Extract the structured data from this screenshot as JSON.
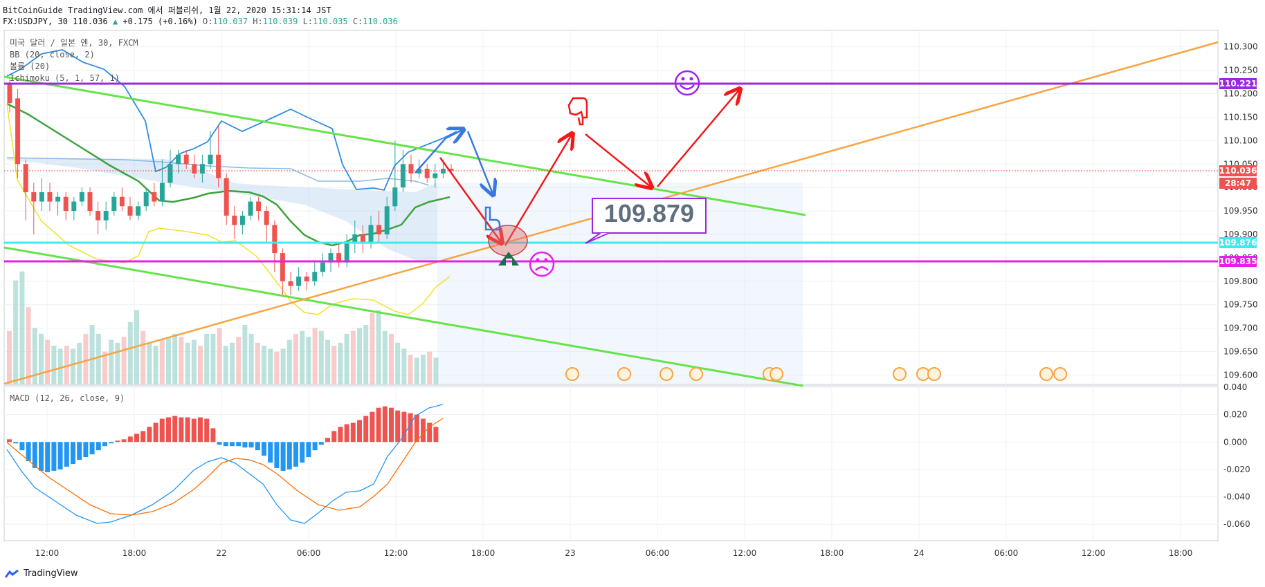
{
  "header": {
    "line1": "BitCoinGuide TradingView.com 에서 퍼블리쉬, 1월 22, 2020 15:31:14 JST",
    "symbol": "FX:USDJPY, 30 110.036",
    "change": "+0.175 (+0.16%)",
    "o_label": "O:",
    "o": "110.037",
    "h_label": "H:",
    "h": "110.039",
    "l_label": "L:",
    "l": "110.035",
    "c_label": "C:",
    "c": "110.036"
  },
  "indicators": {
    "title": "미국 달러 / 일본 엔, 30, FXCM",
    "bb": "BB (20, close, 2)",
    "volume": "볼륨 (20)",
    "ichimoku": "Ichimoku (5, 1, 57, 1)",
    "macd": "MACD (12, 26, close, 9)"
  },
  "annotation": {
    "price_box": "109.879"
  },
  "footer": {
    "brand": "TradingView"
  },
  "colors": {
    "up": "#26a69a",
    "down": "#ef5350",
    "channel": "#66e34a",
    "trend": "#f7a440",
    "resistance": "#9c27e0",
    "support": "#e91ee6",
    "cyan_level": "#40e8f0",
    "arrow_red": "#f21818",
    "arrow_blue": "#3a78e0",
    "macd_line": "#2196f3",
    "signal_line": "#ff6d00"
  },
  "chart_data": {
    "type": "candlestick",
    "symbol": "USDJPY",
    "timeframe": "30",
    "y_axis": {
      "ticks": [
        "110.300",
        "110.250",
        "110.200",
        "110.150",
        "110.100",
        "110.050",
        "110.000",
        "109.950",
        "109.900",
        "109.850",
        "109.800",
        "109.750",
        "109.700",
        "109.650",
        "109.600"
      ],
      "range": [
        109.58,
        110.335
      ]
    },
    "x_axis": {
      "ticks": [
        "12:00",
        "18:00",
        "22",
        "06:00",
        "12:00",
        "18:00",
        "23",
        "06:00",
        "12:00",
        "18:00",
        "24",
        "06:00",
        "12:00",
        "18:00"
      ]
    },
    "price_labels": [
      {
        "value": "110.221",
        "color": "#9c27e0"
      },
      {
        "value": "110.036",
        "color": "#ef5350"
      },
      {
        "value": "28:47",
        "color": "#ef5350"
      },
      {
        "value": "109.876",
        "color": "#40e8f0"
      },
      {
        "value": "109.835",
        "color": "#e91ee6"
      }
    ],
    "horizontal_levels": [
      110.221,
      109.876,
      109.835
    ],
    "last_price": 110.036,
    "macd_axis": {
      "ticks": [
        "0.040",
        "0.020",
        "0.000",
        "-0.020",
        "-0.040",
        "-0.060"
      ],
      "range": [
        -0.072,
        0.04
      ]
    },
    "macd_histogram": [
      0.002,
      -0.001,
      -0.006,
      -0.014,
      -0.019,
      -0.021,
      -0.022,
      -0.021,
      -0.02,
      -0.018,
      -0.016,
      -0.013,
      -0.011,
      -0.009,
      -0.006,
      -0.003,
      -0.001,
      0.001,
      0.002,
      0.004,
      0.006,
      0.008,
      0.011,
      0.014,
      0.017,
      0.018,
      0.019,
      0.018,
      0.018,
      0.017,
      0.018,
      0.017,
      0.01,
      -0.002,
      -0.003,
      -0.003,
      -0.003,
      -0.004,
      -0.004,
      -0.006,
      -0.01,
      -0.015,
      -0.019,
      -0.021,
      -0.02,
      -0.018,
      -0.015,
      -0.011,
      -0.006,
      -0.002,
      0.003,
      0.008,
      0.011,
      0.013,
      0.014,
      0.016,
      0.019,
      0.022,
      0.025,
      0.026,
      0.025,
      0.023,
      0.022,
      0.021,
      0.02,
      0.017,
      0.014,
      0.011
    ],
    "volume": [
      18,
      35,
      38,
      26,
      19,
      17,
      15,
      13,
      12,
      13,
      12,
      14,
      17,
      20,
      17,
      11,
      15,
      14,
      16,
      21,
      25,
      18,
      14,
      13,
      15,
      16,
      17,
      16,
      14,
      15,
      13,
      17,
      17,
      19,
      13,
      14,
      16,
      20,
      17,
      14,
      13,
      12,
      11,
      12,
      15,
      17,
      18,
      16,
      19,
      18,
      15,
      13,
      14,
      17,
      18,
      19,
      20,
      24,
      25,
      18,
      17,
      14,
      12,
      10,
      9,
      10,
      11,
      9
    ]
  }
}
